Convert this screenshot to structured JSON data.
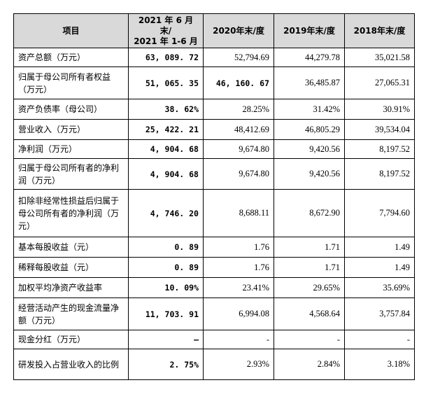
{
  "table": {
    "headers": [
      "项目",
      "2021 年 6 月末/\n2021 年 1-6 月",
      "2020年末/度",
      "2019年末/度",
      "2018年末/度"
    ],
    "rows": [
      {
        "label": "资产总额（万元）",
        "h2021": "63, 089. 72",
        "y2020": "52,794.69",
        "y2019": "44,279.78",
        "y2018": "35,021.58"
      },
      {
        "label": "归属于母公司所有者权益（万元）",
        "h2021": "51, 065. 35",
        "y2020": "46, 160. 67",
        "y2019": "36,485.87",
        "y2018": "27,065.31"
      },
      {
        "label": "资产负债率（母公司）",
        "h2021": "38. 62%",
        "y2020": "28.25%",
        "y2019": "31.42%",
        "y2018": "30.91%"
      },
      {
        "label": "营业收入（万元）",
        "h2021": "25, 422. 21",
        "y2020": "48,412.69",
        "y2019": "46,805.29",
        "y2018": "39,534.04"
      },
      {
        "label": "净利润（万元）",
        "h2021": "4, 904. 68",
        "y2020": "9,674.80",
        "y2019": "9,420.56",
        "y2018": "8,197.52"
      },
      {
        "label": "归属于母公司所有者的净利润（万元）",
        "h2021": "4, 904. 68",
        "y2020": "9,674.80",
        "y2019": "9,420.56",
        "y2018": "8,197.52"
      },
      {
        "label": "扣除非经常性损益后归属于母公司所有者的净利润（万元）",
        "h2021": "4, 746. 20",
        "y2020": "8,688.11",
        "y2019": "8,672.90",
        "y2018": "7,794.60"
      },
      {
        "label": "基本每股收益（元）",
        "h2021": "0. 89",
        "y2020": "1.76",
        "y2019": "1.71",
        "y2018": "1.49"
      },
      {
        "label": "稀释每股收益（元）",
        "h2021": "0. 89",
        "y2020": "1.76",
        "y2019": "1.71",
        "y2018": "1.49"
      },
      {
        "label": "加权平均净资产收益率",
        "h2021": "10. 09%",
        "y2020": "23.41%",
        "y2019": "29.65%",
        "y2018": "35.69%"
      },
      {
        "label": "经营活动产生的现金流量净额（万元）",
        "h2021": "11, 703. 91",
        "y2020": "6,994.08",
        "y2019": "4,568.64",
        "y2018": "3,757.84"
      },
      {
        "label": "现金分红（万元）",
        "h2021": "–",
        "y2020": "-",
        "y2019": "-",
        "y2018": "-"
      },
      {
        "label": "研发投入占营业收入的比例",
        "h2021": "2. 75%",
        "y2020": "2.93%",
        "y2019": "2.84%",
        "y2018": "3.18%"
      }
    ]
  }
}
